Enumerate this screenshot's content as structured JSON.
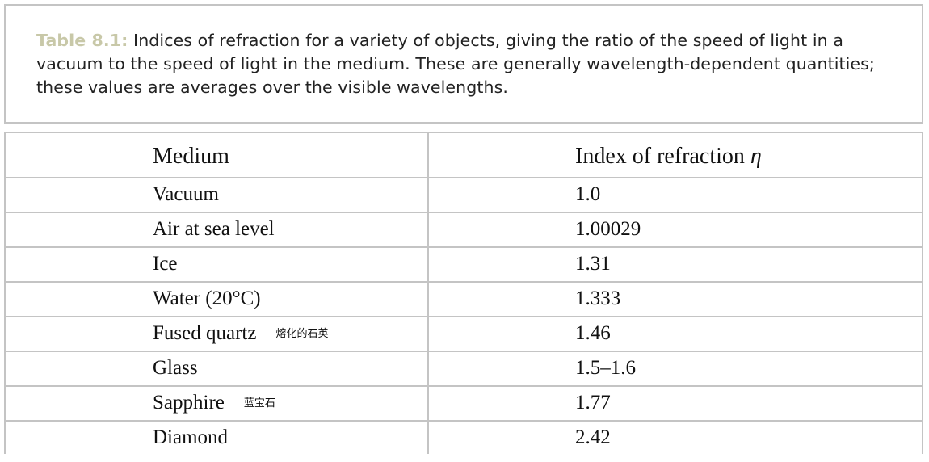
{
  "caption": {
    "label": "Table 8.1:",
    "text": " Indices of refraction for a variety of objects, giving the ratio of the speed of light in a vacuum to the speed of light in the medium. These are generally wavelength-dependent quantities; these values are averages over the visible wavelengths."
  },
  "table": {
    "headers": {
      "medium": "Medium",
      "index": "Index of refraction ",
      "index_symbol": "η"
    },
    "rows": [
      {
        "medium": "Vacuum",
        "note": "",
        "index": "1.0"
      },
      {
        "medium": "Air at sea level",
        "note": "",
        "index": "1.00029"
      },
      {
        "medium": "Ice",
        "note": "",
        "index": "1.31"
      },
      {
        "medium": "Water (20°C)",
        "note": "",
        "index": "1.333"
      },
      {
        "medium": "Fused quartz",
        "note": "熔化的石英",
        "index": "1.46"
      },
      {
        "medium": "Glass",
        "note": "",
        "index": "1.5–1.6"
      },
      {
        "medium": "Sapphire",
        "note": "蓝宝石",
        "index": "1.77"
      },
      {
        "medium": "Diamond",
        "note": "",
        "index": "2.42"
      }
    ]
  }
}
